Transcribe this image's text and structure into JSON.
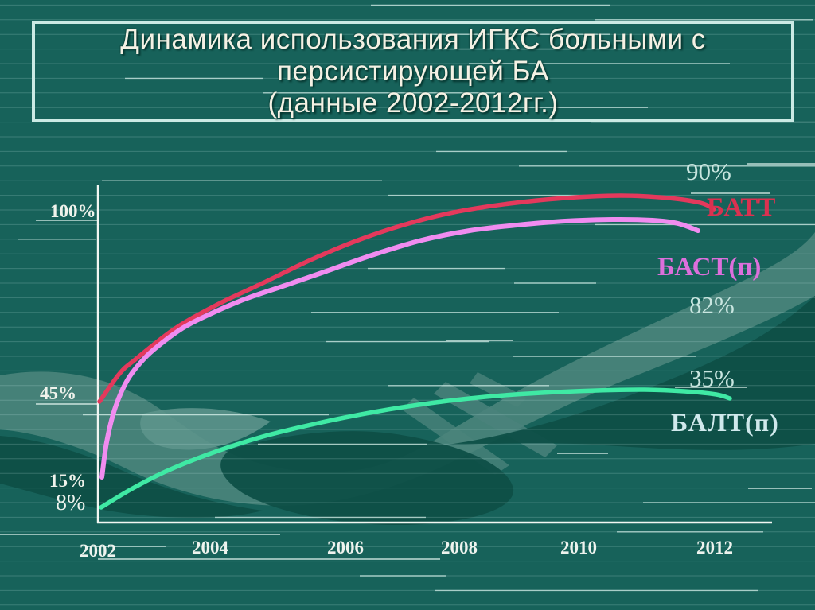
{
  "slide": {
    "title": {
      "line1": "Динамика использования ИГКС  больными с",
      "line2": "персистирующей БА",
      "line3": "(данные 2002-2012гг.)"
    }
  },
  "chart_data": {
    "type": "line",
    "title": "Динамика использования ИГКС больными с персистирующей БА (данные 2002-2012гг.)",
    "xlabel": "",
    "ylabel": "",
    "x_ticks": [
      "2002",
      "2004",
      "2006",
      "2008",
      "2010",
      "2012"
    ],
    "y_axis_labels": [
      "100%",
      "45%",
      "15%",
      "8%"
    ],
    "grid": "horizontal-pinstripes (background texture)",
    "legend_position": "labels at right end of each curve",
    "series": [
      {
        "name": "БАТТ",
        "color": "#e4395c",
        "end_annotation": "90%",
        "categories": [
          "2002",
          "2004",
          "2006",
          "2008",
          "2010",
          "2012"
        ],
        "values": [
          45,
          68,
          80,
          87,
          90,
          90
        ]
      },
      {
        "name": "БАСТ(п)",
        "color": "#f08cf0",
        "end_annotation": "82%",
        "categories": [
          "2002",
          "2004",
          "2006",
          "2008",
          "2010",
          "2012"
        ],
        "values": [
          15,
          54,
          70,
          78,
          82,
          82
        ]
      },
      {
        "name": "БАЛТ(п)",
        "color": "#3fe9a4",
        "end_annotation": "35%",
        "categories": [
          "2002",
          "2004",
          "2006",
          "2008",
          "2010",
          "2012"
        ],
        "values": [
          8,
          17,
          25,
          30,
          34,
          35
        ]
      }
    ],
    "colors": {
      "background": "#17625a",
      "background_dark_shape": "#0e4f47",
      "background_light_shape": "#4a837b",
      "axis": "#f2f6f2",
      "stripe": "#d2f5ee"
    }
  }
}
